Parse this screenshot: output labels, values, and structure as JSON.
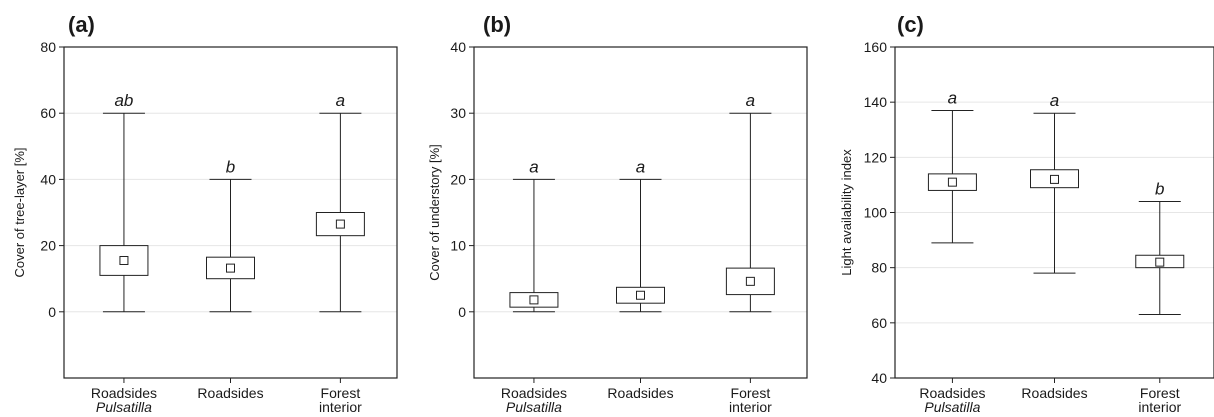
{
  "chart_data": [
    {
      "type": "box",
      "panel": "(a)",
      "ylabel": "Cover of tree-layer [%]",
      "ylim": [
        -20,
        80
      ],
      "yticks": [
        0,
        20,
        40,
        60,
        80
      ],
      "grid": true,
      "categories": [
        {
          "line1": "Roadsides",
          "line2": "Pulsatilla",
          "line2_italic": true
        },
        {
          "line1": "Roadsides",
          "line2": ""
        },
        {
          "line1": "Forest",
          "line2": "interior"
        }
      ],
      "boxes": [
        {
          "min": 0,
          "q1": 11,
          "mean": 15.5,
          "q3": 20,
          "max": 60,
          "letter": "ab"
        },
        {
          "min": 0,
          "q1": 10,
          "mean": 13.2,
          "q3": 16.5,
          "max": 40,
          "letter": "b"
        },
        {
          "min": 0,
          "q1": 23,
          "mean": 26.5,
          "q3": 30,
          "max": 60,
          "letter": "a"
        }
      ]
    },
    {
      "type": "box",
      "panel": "(b)",
      "ylabel": "Cover of understory [%]",
      "ylim": [
        -10,
        40
      ],
      "yticks": [
        0,
        10,
        20,
        30,
        40
      ],
      "grid": true,
      "categories": [
        {
          "line1": "Roadsides",
          "line2": "Pulsatilla",
          "line2_italic": true
        },
        {
          "line1": "Roadsides",
          "line2": ""
        },
        {
          "line1": "Forest",
          "line2": "interior"
        }
      ],
      "boxes": [
        {
          "min": 0,
          "q1": 0.7,
          "mean": 1.8,
          "q3": 2.9,
          "max": 20,
          "letter": "a"
        },
        {
          "min": 0,
          "q1": 1.3,
          "mean": 2.5,
          "q3": 3.7,
          "max": 20,
          "letter": "a"
        },
        {
          "min": 0,
          "q1": 2.6,
          "mean": 4.6,
          "q3": 6.6,
          "max": 30,
          "letter": "a"
        }
      ]
    },
    {
      "type": "box",
      "panel": "(c)",
      "ylabel": "Light availability index",
      "ylim": [
        40,
        160
      ],
      "yticks": [
        40,
        60,
        80,
        100,
        120,
        140,
        160
      ],
      "grid": true,
      "categories": [
        {
          "line1": "Roadsides",
          "line2": "Pulsatilla",
          "line2_italic": true
        },
        {
          "line1": "Roadsides",
          "line2": ""
        },
        {
          "line1": "Forest",
          "line2": "interior"
        }
      ],
      "boxes": [
        {
          "min": 89,
          "q1": 108,
          "mean": 111,
          "q3": 114,
          "max": 137,
          "letter": "a"
        },
        {
          "min": 78,
          "q1": 109,
          "mean": 112,
          "q3": 115.5,
          "max": 136,
          "letter": "a"
        },
        {
          "min": 63,
          "q1": 80,
          "mean": 82,
          "q3": 84.5,
          "max": 104,
          "letter": "b"
        }
      ]
    }
  ],
  "colors": {
    "axis": "#222222",
    "grid": "#e6e6e6",
    "box_fill": "#ffffff"
  }
}
